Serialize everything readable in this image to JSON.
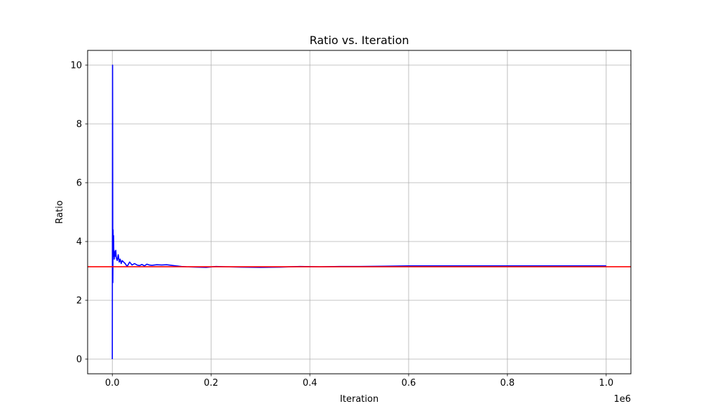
{
  "chart_data": {
    "type": "line",
    "title": "Ratio vs. Iteration",
    "xlabel": "Iteration",
    "ylabel": "Ratio",
    "x_offset_label": "1e6",
    "xlim": [
      -50000,
      1050000
    ],
    "ylim": [
      -0.5,
      10.5
    ],
    "xticks": [
      0,
      200000,
      400000,
      600000,
      800000,
      1000000
    ],
    "xtick_labels": [
      "0.0",
      "0.2",
      "0.4",
      "0.6",
      "0.8",
      "1.0"
    ],
    "yticks": [
      0,
      2,
      4,
      6,
      8,
      10
    ],
    "ytick_labels": [
      "0",
      "2",
      "4",
      "6",
      "8",
      "10"
    ],
    "grid": true,
    "legend": "none",
    "hline": {
      "y": 3.14159,
      "color": "#ff0000"
    },
    "series": [
      {
        "color": "#0000ff",
        "x": [
          0,
          500,
          1000,
          1500,
          2000,
          2500,
          3000,
          3500,
          4000,
          5000,
          6000,
          7000,
          8000,
          10000,
          12000,
          14000,
          16000,
          18000,
          20000,
          23000,
          26000,
          30000,
          35000,
          40000,
          45000,
          50000,
          55000,
          60000,
          65000,
          70000,
          75000,
          80000,
          90000,
          100000,
          110000,
          120000,
          130000,
          140000,
          150000,
          170000,
          190000,
          210000,
          230000,
          260000,
          300000,
          340000,
          380000,
          420000,
          460000,
          500000,
          550000,
          600000,
          650000,
          700000,
          750000,
          800000,
          850000,
          900000,
          950000,
          1000000
        ],
        "y": [
          0.0,
          10.0,
          2.6,
          4.4,
          3.5,
          4.2,
          3.6,
          3.7,
          3.4,
          3.65,
          3.5,
          3.7,
          3.45,
          3.35,
          3.55,
          3.3,
          3.4,
          3.25,
          3.35,
          3.3,
          3.25,
          3.15,
          3.3,
          3.2,
          3.25,
          3.2,
          3.18,
          3.22,
          3.17,
          3.23,
          3.2,
          3.19,
          3.21,
          3.2,
          3.21,
          3.19,
          3.17,
          3.15,
          3.14,
          3.13,
          3.12,
          3.15,
          3.14,
          3.13,
          3.12,
          3.13,
          3.15,
          3.14,
          3.15,
          3.15,
          3.16,
          3.17,
          3.17,
          3.17,
          3.17,
          3.17,
          3.17,
          3.17,
          3.17,
          3.17
        ]
      }
    ]
  }
}
